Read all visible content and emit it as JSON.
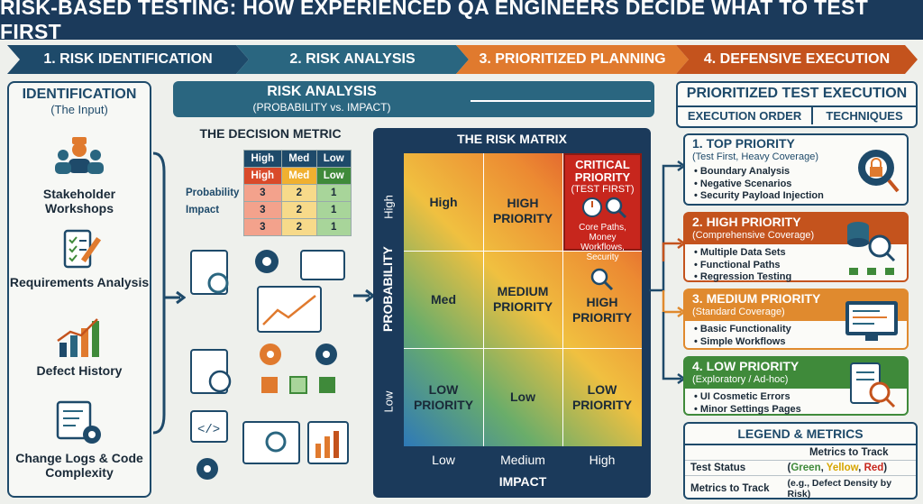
{
  "title": "RISK-BASED TESTING: HOW EXPERIENCED QA ENGINEERS DECIDE WHAT TO TEST FIRST",
  "steps": [
    {
      "label": "1. RISK IDENTIFICATION",
      "color": "#1e4a6a"
    },
    {
      "label": "2. RISK ANALYSIS",
      "color": "#2a6680"
    },
    {
      "label": "3. PRIORITIZED PLANNING",
      "color": "#e07a2e"
    },
    {
      "label": "4. DEFENSIVE EXECUTION",
      "color": "#c4531d"
    }
  ],
  "identification": {
    "title": "IDENTIFICATION",
    "subtitle": "(The Input)",
    "items": [
      {
        "label": "Stakeholder Workshops",
        "icon": "stakeholder-icon"
      },
      {
        "label": "Requirements Analysis",
        "icon": "checklist-icon"
      },
      {
        "label": "Defect History",
        "icon": "bar-chart-icon"
      },
      {
        "label": "Change Logs & Code Complexity",
        "icon": "code-gear-icon"
      }
    ]
  },
  "analysis": {
    "title": "RISK ANALYSIS",
    "subtitle": "(PROBABILITY vs. IMPACT)",
    "metric_title": "THE DECISION METRIC",
    "metric_header": [
      "High",
      "Med",
      "Low"
    ],
    "metric_row_header": [
      "High",
      "Med",
      "Low"
    ],
    "metric_labels": [
      "Probability",
      "Impact"
    ],
    "metric_rows": [
      [
        "3",
        "2",
        "1"
      ],
      [
        "3",
        "2",
        "1"
      ],
      [
        "3",
        "2",
        "1"
      ]
    ]
  },
  "matrix": {
    "title": "THE RISK MATRIX",
    "y_label": "PROBABILITY",
    "x_label": "IMPACT",
    "y_ticks": [
      "High",
      "Med",
      "Low"
    ],
    "x_ticks": [
      "Low",
      "Medium",
      "High"
    ],
    "cells": {
      "r0c0": "High",
      "r0c1": "HIGH PRIORITY",
      "critical_title": "CRITICAL PRIORITY",
      "critical_sub": "(TEST FIRST)",
      "critical_note": "Core Paths, Money Workflows, Security",
      "r1c0": "Med",
      "r1c1": "MEDIUM PRIORITY",
      "r1c2": "HIGH PRIORITY",
      "r2c0": "LOW PRIORITY",
      "r2c1": "Low",
      "r2c2": "LOW PRIORITY"
    }
  },
  "execution": {
    "title": "PRIORITIZED TEST EXECUTION",
    "col1": "EXECUTION ORDER",
    "col2": "TECHNIQUES",
    "priorities": [
      {
        "title": "1. TOP PRIORITY",
        "sub": "(Test First, Heavy Coverage)",
        "color": "#1e4a6a",
        "items": [
          "Boundary Analysis",
          "Negative Scenarios",
          "Security Payload Injection"
        ]
      },
      {
        "title": "2. HIGH PRIORITY",
        "sub": "(Comprehensive Coverage)",
        "color": "#c4531d",
        "items": [
          "Multiple Data Sets",
          "Functional Paths",
          "Regression Testing"
        ]
      },
      {
        "title": "3. MEDIUM PRIORITY",
        "sub": "(Standard Coverage)",
        "color": "#e08a2e",
        "items": [
          "Basic Functionality",
          "Simple Workflows"
        ]
      },
      {
        "title": "4. LOW PRIORITY",
        "sub": "(Exploratory / Ad-hoc)",
        "color": "#3f8a3a",
        "items": [
          "UI Cosmetic Errors",
          "Minor Settings Pages"
        ]
      }
    ]
  },
  "legend": {
    "title": "LEGEND & METRICS",
    "header": "Metrics to Track",
    "row1_label": "Test Status",
    "row1_open": "(",
    "row1_green": "Green",
    "row1_yellow": "Yellow",
    "row1_red": "Red",
    "row1_close": ")",
    "row2_label": "Metrics to Track",
    "row2_value": "(e.g., Defect Density by Risk)"
  }
}
